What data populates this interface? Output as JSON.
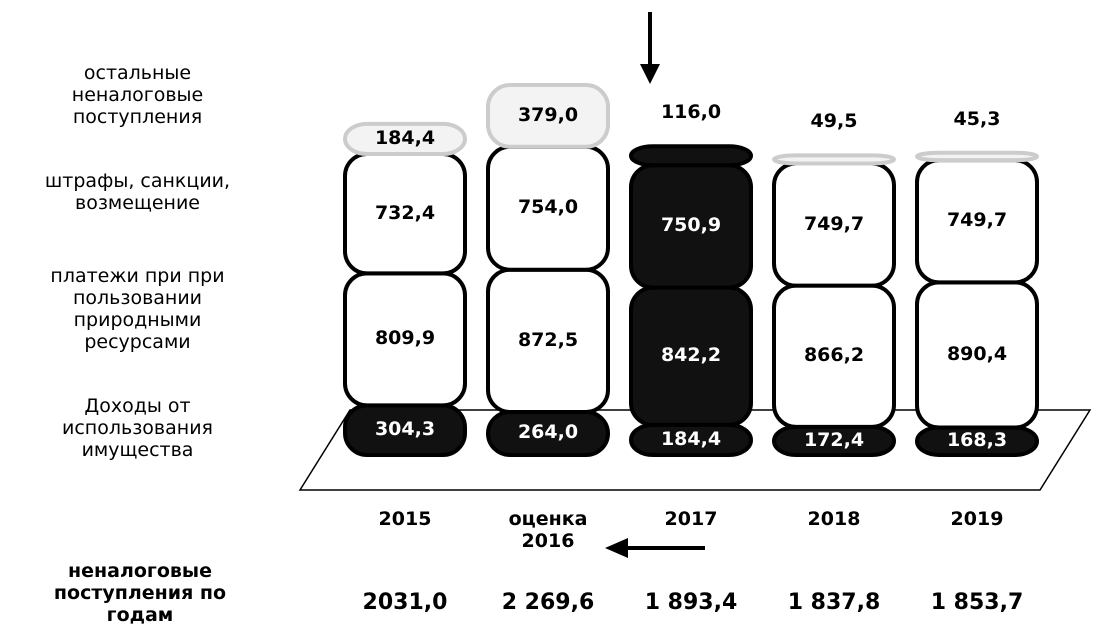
{
  "chart_data": {
    "type": "stacked_bar",
    "categories": [
      "2015",
      "оценка 2016",
      "2017",
      "2018",
      "2019"
    ],
    "highlight": "2017",
    "series": [
      {
        "name": "Доходы от использования имущества",
        "color": "#111111",
        "text_color": "#ffffff",
        "values": [
          304.3,
          264.0,
          184.4,
          172.4,
          168.3
        ],
        "value_labels": [
          "304,3",
          "264,0",
          "184,4",
          "172,4",
          "168,3"
        ]
      },
      {
        "name": "платежи при при пользовании природными ресурсами",
        "color": "#ffffff",
        "text_color": "#000000",
        "values": [
          809.9,
          872.5,
          842.2,
          866.2,
          890.4
        ],
        "value_labels": [
          "809,9",
          "872,5",
          "842,2",
          "866,2",
          "890,4"
        ]
      },
      {
        "name": "штрафы, санкции, возмещение",
        "color": "#ffffff",
        "text_color": "#000000",
        "values": [
          732.4,
          754.0,
          750.9,
          749.7,
          749.7
        ],
        "value_labels": [
          "732,4",
          "754,0",
          "750,9",
          "749,7",
          "749,7"
        ]
      },
      {
        "name": "остальные неналоговые поступления",
        "color": "#f3f3f3",
        "text_color": "#000000",
        "values": [
          184.4,
          379.0,
          116.0,
          49.5,
          45.3
        ],
        "value_labels": [
          "184,4",
          "379,0",
          "116,0",
          "49,5",
          "45,3"
        ]
      }
    ],
    "totals_title": "неналоговые поступления по годам",
    "totals": [
      2031.0,
      2269.6,
      1893.4,
      1837.8,
      1853.7
    ],
    "totals_labels": [
      "2031,0",
      "2 269,6",
      "1 893,4",
      "1 837,8",
      "1 853,7"
    ]
  }
}
